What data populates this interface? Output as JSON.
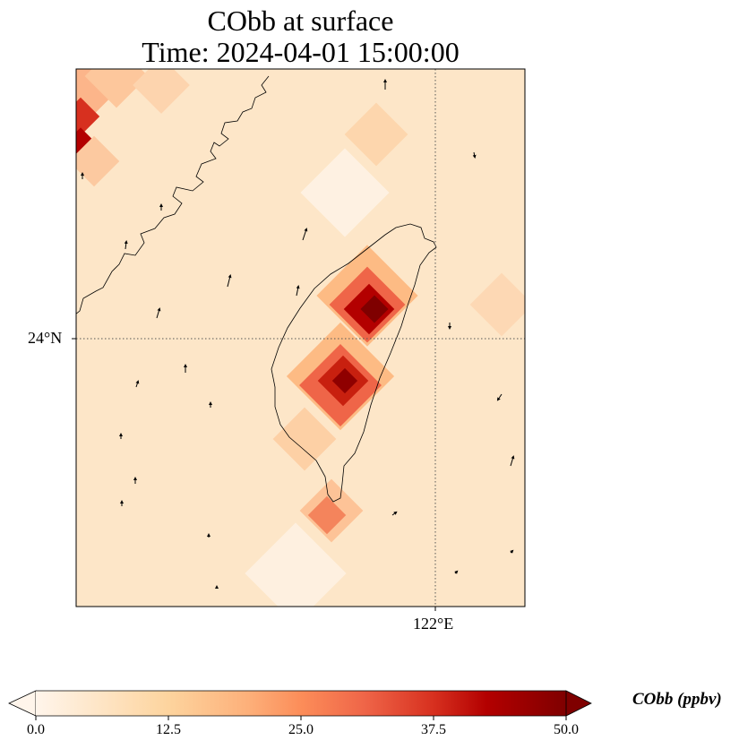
{
  "title": {
    "line1": "CObb at surface",
    "line2": "Time: 2024-04-01 15:00:00"
  },
  "map": {
    "lat_label": "24°N",
    "lon_label": "122°E",
    "variable": "CObb",
    "overlay": "wind-vector arrows",
    "peak_region": "central Taiwan"
  },
  "colorbar": {
    "label": "CObb (ppbv)",
    "ticks": [
      "0.0",
      "12.5",
      "25.0",
      "37.5",
      "50.0"
    ],
    "min": 0,
    "max": 50,
    "extend": "both",
    "colormap": [
      "#fff5eb",
      "#fdd49e",
      "#fdbb84",
      "#fc8d59",
      "#ef6548",
      "#d7301f",
      "#b30000",
      "#7f0000"
    ]
  }
}
